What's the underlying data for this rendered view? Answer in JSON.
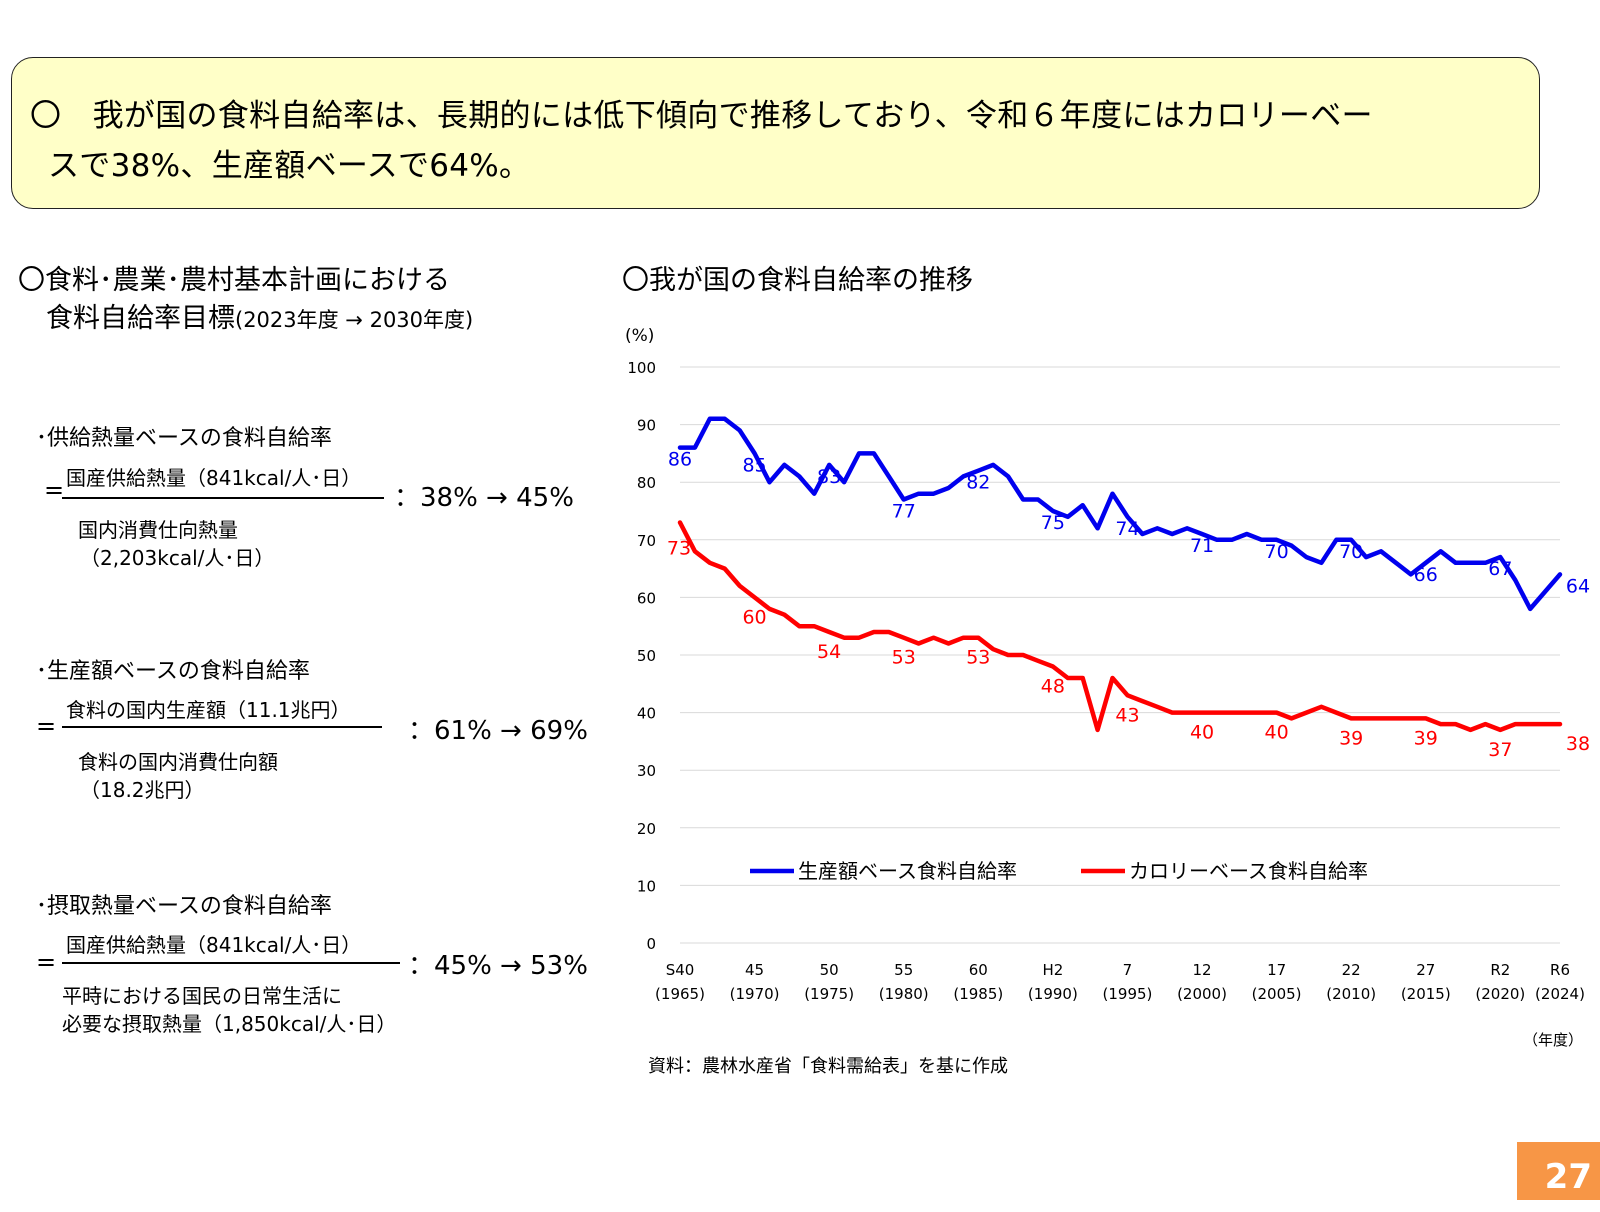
{
  "summary": {
    "line1": "〇　我が国の食料自給率は、長期的には低下傾向で推移しており、令和６年度にはカロリーベー",
    "line2": "スで38%、生産額ベースで64%。"
  },
  "left": {
    "heading_line1": "〇食料･農業･農村基本計画における",
    "heading_line2": "食料自給率目標",
    "heading_period": "(2023年度 → 2030年度)",
    "formulas": [
      {
        "title": "･供給熱量ベースの食料自給率",
        "numerator": "国産供給熱量（841kcal/人･日）",
        "denominator_1": "国内消費仕向熱量",
        "denominator_2": "（2,203kcal/人･日）",
        "rate": "：38% → 45%"
      },
      {
        "title": "･生産額ベースの食料自給率",
        "numerator": "食料の国内生産額（11.1兆円）",
        "denominator_1": "食料の国内消費仕向額",
        "denominator_2": "（18.2兆円）",
        "rate": "：61% → 69%"
      },
      {
        "title": "･摂取熱量ベースの食料自給率",
        "numerator": "国産供給熱量（841kcal/人･日）",
        "denominator_1": "平時における国民の日常生活に",
        "denominator_2": "必要な摂取熱量（1,850kcal/人･日）",
        "rate": "：45% → 53%"
      }
    ],
    "eq_sign": "="
  },
  "chart_title": "〇我が国の食料自給率の推移",
  "source_note": "資料：農林水産省「食料需給表」を基に作成",
  "page_number": "27",
  "chart_data": {
    "type": "line",
    "ylabel": "(%)",
    "xlabel": "（年度）",
    "ylim": [
      0,
      100
    ],
    "yticks": [
      0,
      10,
      20,
      30,
      40,
      50,
      60,
      70,
      80,
      90,
      100
    ],
    "xlim": [
      1965,
      2024
    ],
    "grid": true,
    "legend_position": "bottom-center",
    "x_ticks": [
      {
        "x": 1965,
        "label1": "S40",
        "label2": "(1965)"
      },
      {
        "x": 1970,
        "label1": "45",
        "label2": "(1970)"
      },
      {
        "x": 1975,
        "label1": "50",
        "label2": "(1975)"
      },
      {
        "x": 1980,
        "label1": "55",
        "label2": "(1980)"
      },
      {
        "x": 1985,
        "label1": "60",
        "label2": "(1985)"
      },
      {
        "x": 1990,
        "label1": "H2",
        "label2": "(1990)"
      },
      {
        "x": 1995,
        "label1": "7",
        "label2": "(1995)"
      },
      {
        "x": 2000,
        "label1": "12",
        "label2": "(2000)"
      },
      {
        "x": 2005,
        "label1": "17",
        "label2": "(2005)"
      },
      {
        "x": 2010,
        "label1": "22",
        "label2": "(2010)"
      },
      {
        "x": 2015,
        "label1": "27",
        "label2": "(2015)"
      },
      {
        "x": 2020,
        "label1": "R2",
        "label2": "(2020)"
      },
      {
        "x": 2024,
        "label1": "R6",
        "label2": "(2024)"
      }
    ],
    "years": [
      1965,
      1966,
      1967,
      1968,
      1969,
      1970,
      1971,
      1972,
      1973,
      1974,
      1975,
      1976,
      1977,
      1978,
      1979,
      1980,
      1981,
      1982,
      1983,
      1984,
      1985,
      1986,
      1987,
      1988,
      1989,
      1990,
      1991,
      1992,
      1993,
      1994,
      1995,
      1996,
      1997,
      1998,
      1999,
      2000,
      2001,
      2002,
      2003,
      2004,
      2005,
      2006,
      2007,
      2008,
      2009,
      2010,
      2011,
      2012,
      2013,
      2014,
      2015,
      2016,
      2017,
      2018,
      2019,
      2020,
      2021,
      2022,
      2023,
      2024
    ],
    "series": [
      {
        "name": "生産額ベース食料自給率",
        "color": "#0000ee",
        "values": [
          86,
          86,
          91,
          91,
          89,
          85,
          80,
          83,
          81,
          78,
          83,
          80,
          85,
          85,
          81,
          77,
          78,
          78,
          79,
          81,
          82,
          83,
          81,
          77,
          77,
          75,
          74,
          76,
          72,
          78,
          74,
          71,
          72,
          71,
          72,
          71,
          70,
          70,
          71,
          70,
          70,
          69,
          67,
          66,
          70,
          70,
          67,
          68,
          66,
          64,
          66,
          68,
          66,
          66,
          66,
          67,
          63,
          58,
          61,
          64
        ],
        "labels": [
          {
            "year": 1965,
            "value": 86
          },
          {
            "year": 1970,
            "value": 85
          },
          {
            "year": 1975,
            "value": 83
          },
          {
            "year": 1980,
            "value": 77
          },
          {
            "year": 1985,
            "value": 82
          },
          {
            "year": 1990,
            "value": 75
          },
          {
            "year": 1995,
            "value": 74
          },
          {
            "year": 2000,
            "value": 71
          },
          {
            "year": 2005,
            "value": 70
          },
          {
            "year": 2010,
            "value": 70
          },
          {
            "year": 2015,
            "value": 66
          },
          {
            "year": 2020,
            "value": 67
          },
          {
            "year": 2024,
            "value": 64
          }
        ]
      },
      {
        "name": "カロリーベース食料自給率",
        "color": "#ff0000",
        "values": [
          73,
          68,
          66,
          65,
          62,
          60,
          58,
          57,
          55,
          55,
          54,
          53,
          53,
          54,
          54,
          53,
          52,
          53,
          52,
          53,
          53,
          51,
          50,
          50,
          49,
          48,
          46,
          46,
          37,
          46,
          43,
          42,
          41,
          40,
          40,
          40,
          40,
          40,
          40,
          40,
          40,
          39,
          40,
          41,
          40,
          39,
          39,
          39,
          39,
          39,
          39,
          38,
          38,
          37,
          38,
          37,
          38,
          38,
          38,
          38
        ],
        "labels": [
          {
            "year": 1965,
            "value": 73
          },
          {
            "year": 1970,
            "value": 60
          },
          {
            "year": 1975,
            "value": 54
          },
          {
            "year": 1980,
            "value": 53
          },
          {
            "year": 1985,
            "value": 53
          },
          {
            "year": 1990,
            "value": 48
          },
          {
            "year": 1995,
            "value": 43
          },
          {
            "year": 2000,
            "value": 40
          },
          {
            "year": 2005,
            "value": 40
          },
          {
            "year": 2010,
            "value": 39
          },
          {
            "year": 2015,
            "value": 39
          },
          {
            "year": 2020,
            "value": 37
          },
          {
            "year": 2024,
            "value": 38
          }
        ]
      }
    ]
  }
}
